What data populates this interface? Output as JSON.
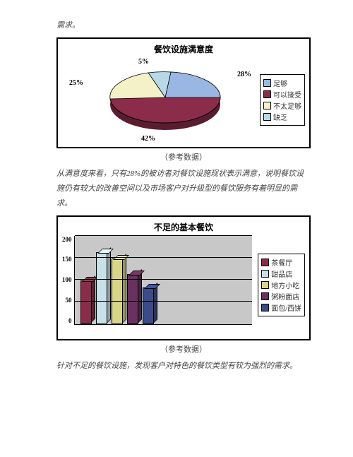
{
  "intro_text": "需求。",
  "pie_chart": {
    "title": "餐饮设施满意度",
    "slices": [
      {
        "label": "足够",
        "value": 28,
        "color": "#9ab7e4"
      },
      {
        "label": "可以接受",
        "value": 42,
        "color": "#8a2c4a"
      },
      {
        "label": "不太足够",
        "value": 25,
        "color": "#f4f0c8"
      },
      {
        "label": "缺乏",
        "value": 5,
        "color": "#b8d8e8"
      }
    ],
    "label_28": "28%",
    "label_42": "42%",
    "label_25": "25%",
    "label_5": "5%",
    "caption": "（参考数据）"
  },
  "para1": "从满意度来看，只有28%的被访者对餐饮设施现状表示满意，说明餐饮设施仍有较大的改善空间以及市场客户对升级型的餐饮服务有着明显的需求。",
  "bar_chart": {
    "title": "不足的基本餐饮",
    "ymax": 200,
    "ytick_step": 50,
    "yticks": [
      "200",
      "150",
      "100",
      "50",
      "0"
    ],
    "series": [
      {
        "label": "茶餐厅",
        "value": 95,
        "color": "#8a2c4a"
      },
      {
        "label": "甜品店",
        "value": 160,
        "color": "#c8e0e8"
      },
      {
        "label": "地方小吃",
        "value": 145,
        "color": "#d8d488"
      },
      {
        "label": "粥粉面店",
        "value": 110,
        "color": "#6a3060"
      },
      {
        "label": "面包/西饼",
        "value": 80,
        "color": "#3a4a8a"
      }
    ],
    "caption": "（参考数据）"
  },
  "para2": "针对不足的餐饮设施，发现客户对特色的餐饮类型有较为强烈的需求。"
}
